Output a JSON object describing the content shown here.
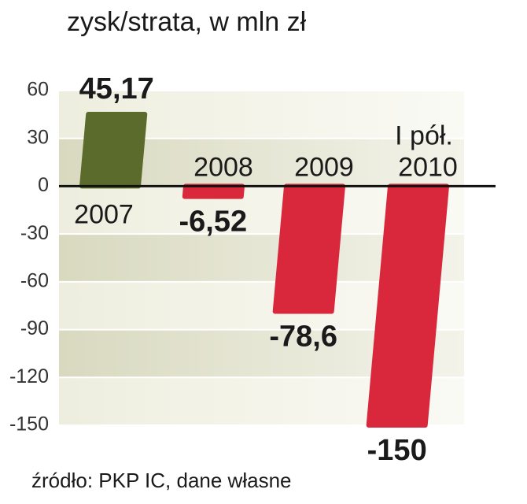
{
  "chart_data": {
    "type": "bar",
    "title": "zysk/strata, w mln zł",
    "source": "źródło: PKP IC, dane własne",
    "categories": [
      "2007",
      "2008",
      "2009",
      "I pół. 2010"
    ],
    "values": [
      45.17,
      -6.52,
      -78.6,
      -150
    ],
    "value_labels": [
      "45,17",
      "-6,52",
      "-78,6",
      "-150"
    ],
    "colors": [
      "#5b6b2b",
      "#d9283c",
      "#d9283c",
      "#d9283c"
    ],
    "ylim": [
      -150,
      60
    ],
    "yticks": [
      60,
      30,
      0,
      -30,
      -60,
      -90,
      -120,
      -150
    ],
    "grid": true
  }
}
